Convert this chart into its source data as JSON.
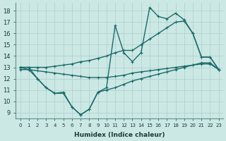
{
  "xlabel": "Humidex (Indice chaleur)",
  "background_color": "#cce8e4",
  "grid_color": "#aacfcc",
  "line_color": "#1a6b6b",
  "yticks": [
    9,
    10,
    11,
    12,
    13,
    14,
    15,
    16,
    17,
    18
  ],
  "xticks": [
    0,
    1,
    2,
    3,
    4,
    5,
    6,
    7,
    8,
    9,
    10,
    11,
    12,
    13,
    14,
    15,
    16,
    17,
    18,
    19,
    20,
    21,
    22,
    23
  ],
  "xlim": [
    -0.5,
    23.5
  ],
  "ylim": [
    8.5,
    18.7
  ],
  "series_jagged_top": [
    13.0,
    12.8,
    12.0,
    11.2,
    10.7,
    10.8,
    9.5,
    8.8,
    9.3,
    10.8,
    11.2,
    16.7,
    14.3,
    13.5,
    14.3,
    18.3,
    17.5,
    17.3,
    17.8,
    17.2,
    16.0,
    13.9,
    13.9,
    12.8
  ],
  "series_upper_diag": [
    13.0,
    13.0,
    13.0,
    13.0,
    13.1,
    13.2,
    13.3,
    13.5,
    13.6,
    13.8,
    14.0,
    14.3,
    14.5,
    14.5,
    15.0,
    15.5,
    16.0,
    16.5,
    17.0,
    17.1,
    16.0,
    13.9,
    13.9,
    12.8
  ],
  "series_lower_diag": [
    12.8,
    12.8,
    12.7,
    12.6,
    12.5,
    12.4,
    12.3,
    12.2,
    12.1,
    12.1,
    12.1,
    12.2,
    12.3,
    12.5,
    12.6,
    12.7,
    12.8,
    12.9,
    13.0,
    13.1,
    13.2,
    13.3,
    13.3,
    12.8
  ],
  "series_jagged_bot": [
    13.0,
    13.0,
    12.0,
    11.2,
    10.7,
    10.7,
    9.5,
    8.8,
    9.3,
    10.8,
    11.0,
    11.2,
    11.5,
    11.8,
    12.0,
    12.2,
    12.4,
    12.6,
    12.8,
    13.0,
    13.2,
    13.4,
    13.4,
    12.8
  ]
}
